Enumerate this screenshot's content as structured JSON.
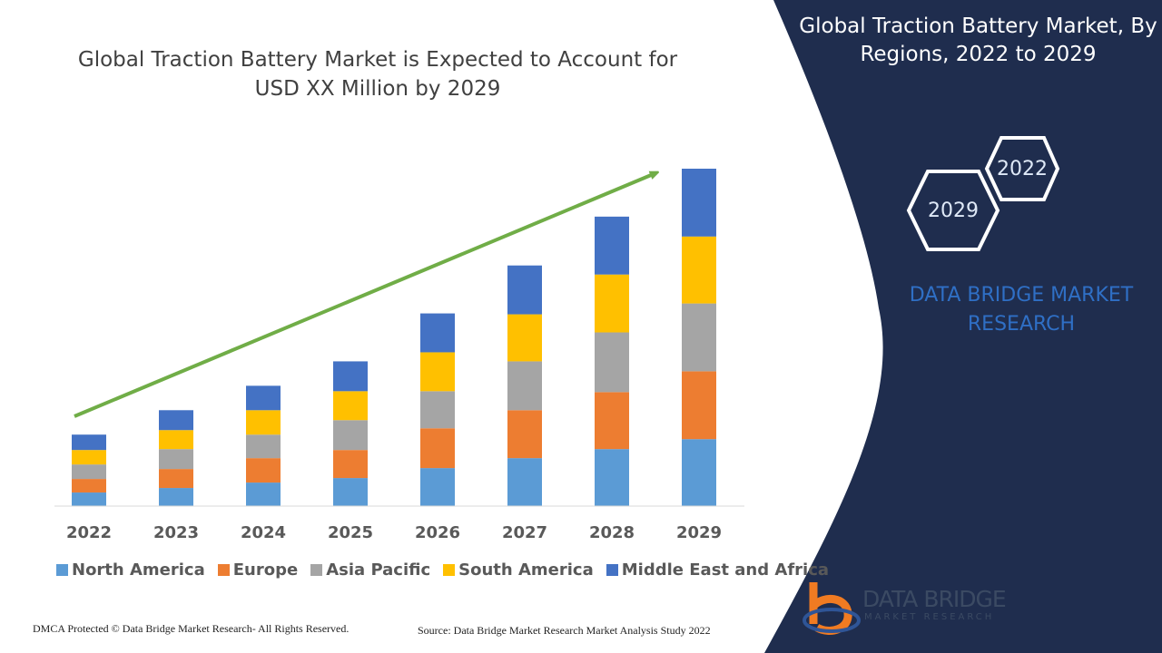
{
  "chart_data": {
    "type": "bar",
    "stacked": true,
    "title": "Global Traction Battery Market is Expected to Account for USD XX Million by 2029",
    "categories": [
      "2022",
      "2023",
      "2024",
      "2025",
      "2026",
      "2027",
      "2028",
      "2029"
    ],
    "series": [
      {
        "name": "North America",
        "color": "#5b9bd5",
        "values": [
          15,
          20,
          26,
          31,
          42,
          53,
          63,
          74
        ]
      },
      {
        "name": "Europe",
        "color": "#ed7d31",
        "values": [
          15,
          21,
          27,
          31,
          44,
          53,
          63,
          75
        ]
      },
      {
        "name": "Asia Pacific",
        "color": "#a5a5a5",
        "values": [
          16,
          22,
          26,
          33,
          41,
          54,
          66,
          75
        ]
      },
      {
        "name": "South America",
        "color": "#ffc000",
        "values": [
          16,
          21,
          27,
          32,
          43,
          52,
          64,
          74
        ]
      },
      {
        "name": "Middle East and Africa",
        "color": "#4472c4",
        "values": [
          17,
          22,
          27,
          33,
          43,
          54,
          64,
          75
        ]
      }
    ],
    "ylim": [
      0,
      400
    ],
    "grid": false,
    "legend": "bottom",
    "trend_arrow_color": "#70ad47"
  },
  "side_panel": {
    "title": "Global Traction Battery Market, By Regions, 2022 to 2029",
    "hex_start": "2022",
    "hex_end": "2029",
    "brand_line1": "DATA BRIDGE MARKET",
    "brand_line2": "RESEARCH",
    "bg_color": "#1f2d4e"
  },
  "logo": {
    "name": "DATA BRIDGE",
    "sub": "MARKET RESEARCH"
  },
  "footer": {
    "left": "DMCA Protected © Data Bridge Market Research- All Rights Reserved.",
    "right": "Source: Data Bridge Market Research Market Analysis Study 2022"
  }
}
